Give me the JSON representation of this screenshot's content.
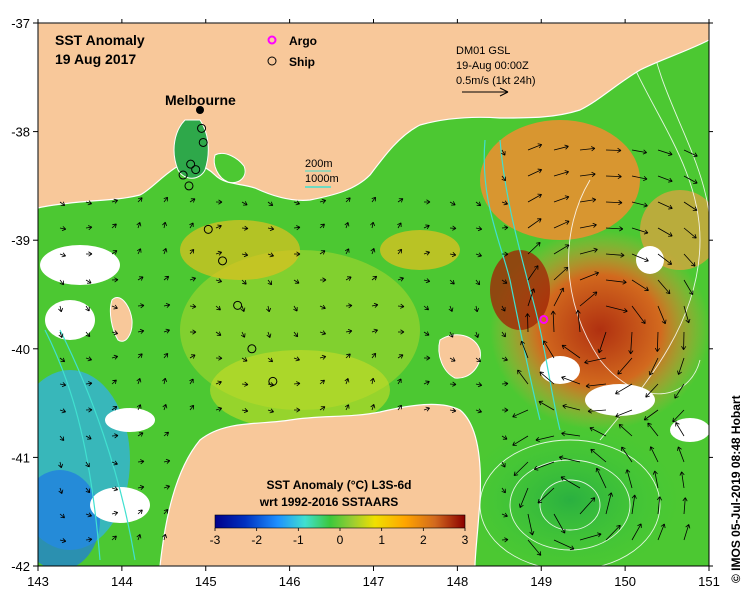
{
  "title": {
    "line1": "SST Anomaly",
    "line2": "19 Aug 2017"
  },
  "legend": {
    "argo": "Argo",
    "ship": "Ship",
    "argo_color": "#ff00ff"
  },
  "current_info": {
    "line1": "DM01 GSL",
    "line2": "19-Aug 00:00Z",
    "line3": "0.5m/s (1kt 24h)"
  },
  "depth_legend": {
    "d200": "200m",
    "d1000": "1000m",
    "contour_color": "#40e0d0"
  },
  "place_label": "Melbourne",
  "colorbar": {
    "title1": "SST Anomaly (°C) L3S-6d",
    "title2": "wrt 1992-2016 SSTAARS",
    "ticks": [
      "-3",
      "-2",
      "-1",
      "0",
      "1",
      "2",
      "3"
    ],
    "min": -3,
    "max": 3
  },
  "credit": "© IMOS 05-Jul-2019 08:48 Hobart",
  "axes": {
    "lon_ticks": [
      "143",
      "144",
      "145",
      "146",
      "147",
      "148",
      "149",
      "150",
      "151"
    ],
    "lat_ticks": [
      "-37",
      "-38",
      "-39",
      "-40",
      "-41",
      "-42"
    ],
    "lon_range": [
      143,
      151
    ],
    "lat_range": [
      -42,
      -37
    ]
  },
  "colors": {
    "land": "#f8c89a",
    "mid_anomaly": "#4cc832"
  },
  "ship_positions": [
    {
      "lon": 144.95,
      "lat": -37.97
    },
    {
      "lon": 144.97,
      "lat": -38.1
    },
    {
      "lon": 144.82,
      "lat": -38.3
    },
    {
      "lon": 144.88,
      "lat": -38.35
    },
    {
      "lon": 144.73,
      "lat": -38.4
    },
    {
      "lon": 144.8,
      "lat": -38.5
    },
    {
      "lon": 145.03,
      "lat": -38.9
    },
    {
      "lon": 145.2,
      "lat": -39.19
    },
    {
      "lon": 145.38,
      "lat": -39.6
    },
    {
      "lon": 145.55,
      "lat": -40.0
    },
    {
      "lon": 145.8,
      "lat": -40.3
    }
  ],
  "argo_positions": [
    {
      "lon": 149.03,
      "lat": -39.73
    }
  ]
}
